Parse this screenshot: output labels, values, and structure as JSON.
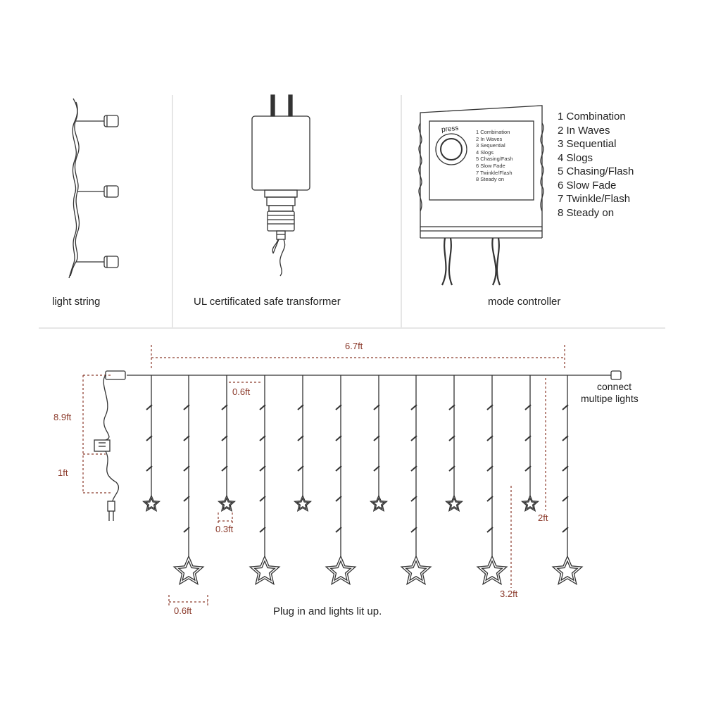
{
  "panels": {
    "light_string": "light string",
    "transformer": "UL certificated safe transformer",
    "controller": "mode controller",
    "controller_button": "press"
  },
  "modes": [
    "1 Combination",
    "2 In Waves",
    "3 Sequential",
    "4 Slogs",
    "5 Chasing/Flash",
    "6 Slow Fade",
    "7 Twinkle/Flash",
    "8 Steady on"
  ],
  "controller_modes": [
    "1 Combination",
    "2 In Waves",
    "3 Sequential",
    "4 Slogs",
    "5 Chasing/Fash",
    "6 Slow Fade",
    "7 Twinkle/Flash",
    "8 Steady on"
  ],
  "curtain": {
    "width": "6.7ft",
    "lead_length": "8.9ft",
    "controller_lead": "1ft",
    "strand_spacing": "0.6ft",
    "bulb_spacing": "0.3ft",
    "short_strand": "2ft",
    "long_strand": "3.2ft",
    "star_spacing": "0.6ft",
    "connect_note_line1": "connect",
    "connect_note_line2": "multipe lights",
    "caption": "Plug in and lights lit up."
  },
  "colors": {
    "dimension": "#8b3a2b",
    "line": "#333333"
  }
}
